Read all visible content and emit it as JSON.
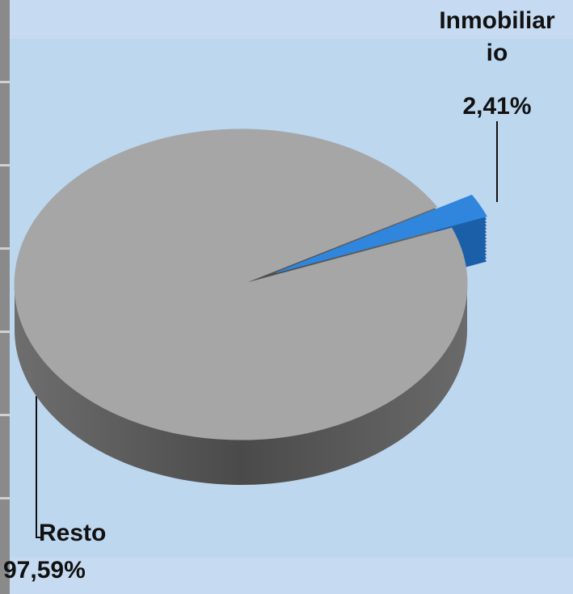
{
  "chart_data": {
    "type": "pie",
    "categories": [
      "Inmobiliario",
      "Resto"
    ],
    "values": [
      2.41,
      97.59
    ],
    "value_labels": [
      "2,41%",
      "97,59%"
    ],
    "colors": [
      "#2f86dc",
      "#a6a6a6"
    ]
  }
}
